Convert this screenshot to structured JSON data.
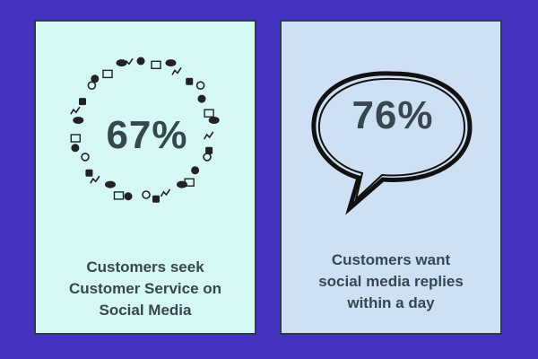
{
  "colors": {
    "background": "#4433c0",
    "left_card": "#d6f8f5",
    "right_card": "#cfe0f4",
    "text": "#36474f",
    "border": "#2e3a48"
  },
  "left_card": {
    "stat": "67%",
    "caption_lines": [
      "Customers seek",
      "Customer Service on",
      "Social Media"
    ],
    "icon_ring": [
      "camera-icon",
      "chat-bubble-icon",
      "user-icon",
      "gear-icon",
      "envelope-icon",
      "chart-icon",
      "music-note-icon",
      "globe-icon",
      "search-icon",
      "image-icon",
      "film-icon",
      "link-icon",
      "document-icon"
    ]
  },
  "right_card": {
    "stat": "76%",
    "caption_lines": [
      "Customers want",
      "social media replies",
      "within a day"
    ],
    "bubble_icon": "speech-bubble-icon"
  }
}
